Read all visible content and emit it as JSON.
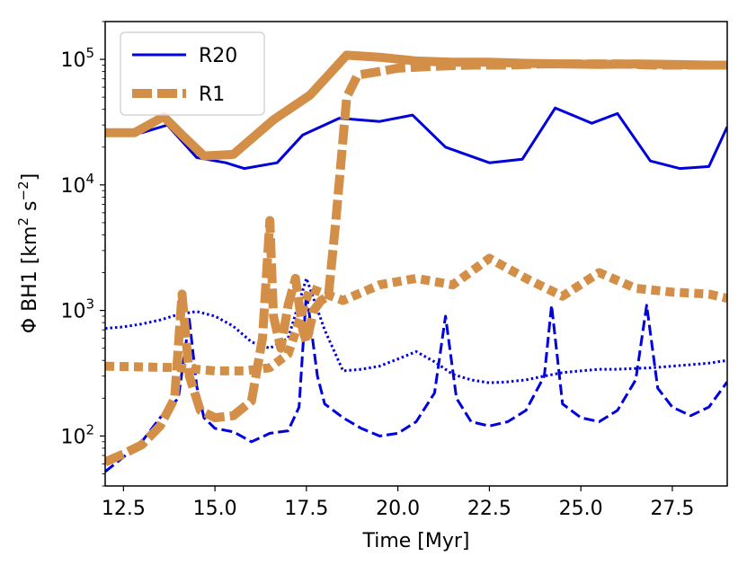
{
  "chart_data": {
    "type": "line",
    "title": "",
    "xlabel": "Time [Myr]",
    "ylabel": "Φ  BH1 [km² s⁻²]",
    "yscale": "log",
    "xlim": [
      12.0,
      29.0
    ],
    "ylim": [
      40,
      200000
    ],
    "x_ticks": [
      12.5,
      15.0,
      17.5,
      20.0,
      22.5,
      25.0,
      27.5
    ],
    "x_tick_labels": [
      "12.5",
      "15.0",
      "17.5",
      "20.0",
      "22.5",
      "25.0",
      "27.5"
    ],
    "y_ticks": [
      {
        "value": 100,
        "base": "10",
        "exp": "2"
      },
      {
        "value": 1000,
        "base": "10",
        "exp": "3"
      },
      {
        "value": 10000,
        "base": "10",
        "exp": "4"
      },
      {
        "value": 100000,
        "base": "10",
        "exp": "5"
      }
    ],
    "ylabel_parts": {
      "main": "Φ  BH1 [km",
      "sup1": "2",
      "mid": " s",
      "sup2": "−2",
      "end": "]"
    },
    "legend": [
      {
        "label": "R20",
        "color": "#0000dd",
        "style": "solid",
        "width": 3
      },
      {
        "label": "R1",
        "color": "#d38f48",
        "style": "dashed",
        "width": 10
      }
    ],
    "series": [
      {
        "name": "R20 solid",
        "run": "R20",
        "color": "#0000dd",
        "style": "solid",
        "width": 3,
        "x": [
          12.0,
          13.0,
          13.7,
          14.5,
          15.3,
          15.8,
          16.7,
          17.4,
          18.4,
          19.5,
          20.4,
          21.3,
          22.5,
          23.4,
          24.3,
          25.3,
          26.0,
          26.9,
          27.7,
          28.5,
          29.0
        ],
        "y": [
          25000,
          26000,
          30000,
          16500,
          15000,
          13500,
          15000,
          25000,
          34000,
          32000,
          36000,
          20000,
          15000,
          16000,
          41000,
          31000,
          37000,
          15500,
          13500,
          14000,
          29000
        ]
      },
      {
        "name": "R20 dashed",
        "run": "R20",
        "color": "#0000dd",
        "style": "dashed",
        "width": 3,
        "x": [
          12.0,
          12.5,
          13.0,
          13.5,
          14.0,
          14.3,
          14.5,
          14.7,
          15.0,
          15.5,
          16.0,
          16.5,
          17.0,
          17.3,
          17.5,
          17.8,
          18.0,
          18.5,
          19.0,
          19.5,
          20.0,
          20.5,
          21.0,
          21.3,
          21.6,
          22.0,
          22.5,
          23.0,
          23.5,
          24.0,
          24.2,
          24.5,
          25.0,
          25.5,
          26.0,
          26.5,
          26.8,
          27.1,
          27.5,
          28.0,
          28.5,
          29.0
        ],
        "y": [
          52,
          68,
          90,
          140,
          200,
          850,
          250,
          140,
          115,
          108,
          90,
          105,
          110,
          170,
          1400,
          300,
          180,
          140,
          115,
          100,
          105,
          130,
          220,
          900,
          200,
          130,
          120,
          130,
          160,
          300,
          1100,
          180,
          140,
          130,
          160,
          280,
          1100,
          240,
          170,
          145,
          170,
          270
        ]
      },
      {
        "name": "R20 dotted",
        "run": "R20",
        "color": "#0000dd",
        "style": "dotted",
        "width": 3,
        "x": [
          12.0,
          12.5,
          13.0,
          13.5,
          14.0,
          14.5,
          15.0,
          15.5,
          16.0,
          16.5,
          17.0,
          17.5,
          18.0,
          18.5,
          19.0,
          19.5,
          20.0,
          20.5,
          21.0,
          21.5,
          22.0,
          22.5,
          23.0,
          23.5,
          24.0,
          24.5,
          25.0,
          25.5,
          26.0,
          26.5,
          27.0,
          27.5,
          28.0,
          28.5,
          29.0
        ],
        "y": [
          720,
          740,
          780,
          840,
          930,
          980,
          900,
          750,
          560,
          500,
          600,
          1800,
          700,
          330,
          340,
          360,
          410,
          470,
          390,
          310,
          280,
          265,
          270,
          280,
          300,
          320,
          330,
          340,
          340,
          345,
          350,
          360,
          370,
          380,
          400
        ]
      },
      {
        "name": "R1 solid",
        "run": "R1",
        "color": "#d38f48",
        "style": "solid",
        "width": 10,
        "x": [
          12.0,
          12.8,
          13.6,
          14.1,
          14.7,
          15.5,
          16.6,
          17.6,
          18.6,
          19.5,
          20.5,
          21.5,
          22.5,
          23.5,
          24.5,
          25.5,
          26.5,
          27.5,
          28.5,
          29.0
        ],
        "y": [
          26000,
          26000,
          35000,
          25000,
          17000,
          17500,
          33000,
          52000,
          108000,
          104000,
          97000,
          95000,
          95000,
          93000,
          92000,
          91000,
          92000,
          91000,
          90000,
          90000
        ]
      },
      {
        "name": "R1 dashed",
        "run": "R1",
        "color": "#d38f48",
        "style": "dashed",
        "width": 10,
        "x": [
          12.0,
          12.5,
          13.0,
          13.5,
          13.9,
          14.1,
          14.3,
          14.6,
          15.0,
          15.5,
          16.0,
          16.3,
          16.5,
          16.6,
          16.8,
          17.0,
          17.2,
          17.4,
          17.5,
          17.7,
          17.9,
          18.1,
          18.3,
          18.6,
          18.9,
          19.5,
          20.0,
          21.0,
          22.0,
          23.0,
          24.0,
          25.0,
          26.0,
          27.0,
          28.0,
          29.0
        ],
        "y": [
          62,
          72,
          85,
          120,
          200,
          1350,
          300,
          160,
          140,
          145,
          190,
          600,
          5200,
          900,
          500,
          1100,
          1800,
          700,
          560,
          1000,
          1200,
          1300,
          5000,
          50000,
          75000,
          80000,
          85000,
          88000,
          90000,
          90000,
          92000,
          92000,
          92000,
          90000,
          90000,
          90000
        ]
      },
      {
        "name": "R1 dotted",
        "run": "R1",
        "color": "#d38f48",
        "style": "dotted",
        "width": 10,
        "x": [
          12.0,
          13.0,
          14.0,
          15.0,
          15.8,
          16.5,
          17.0,
          17.6,
          18.5,
          19.5,
          20.5,
          21.5,
          22.5,
          23.5,
          24.5,
          25.5,
          26.5,
          27.5,
          28.5,
          29.0
        ],
        "y": [
          360,
          355,
          350,
          330,
          330,
          350,
          450,
          1500,
          1200,
          1600,
          1800,
          1600,
          2600,
          1800,
          1300,
          2000,
          1500,
          1400,
          1350,
          1250
        ]
      }
    ]
  }
}
